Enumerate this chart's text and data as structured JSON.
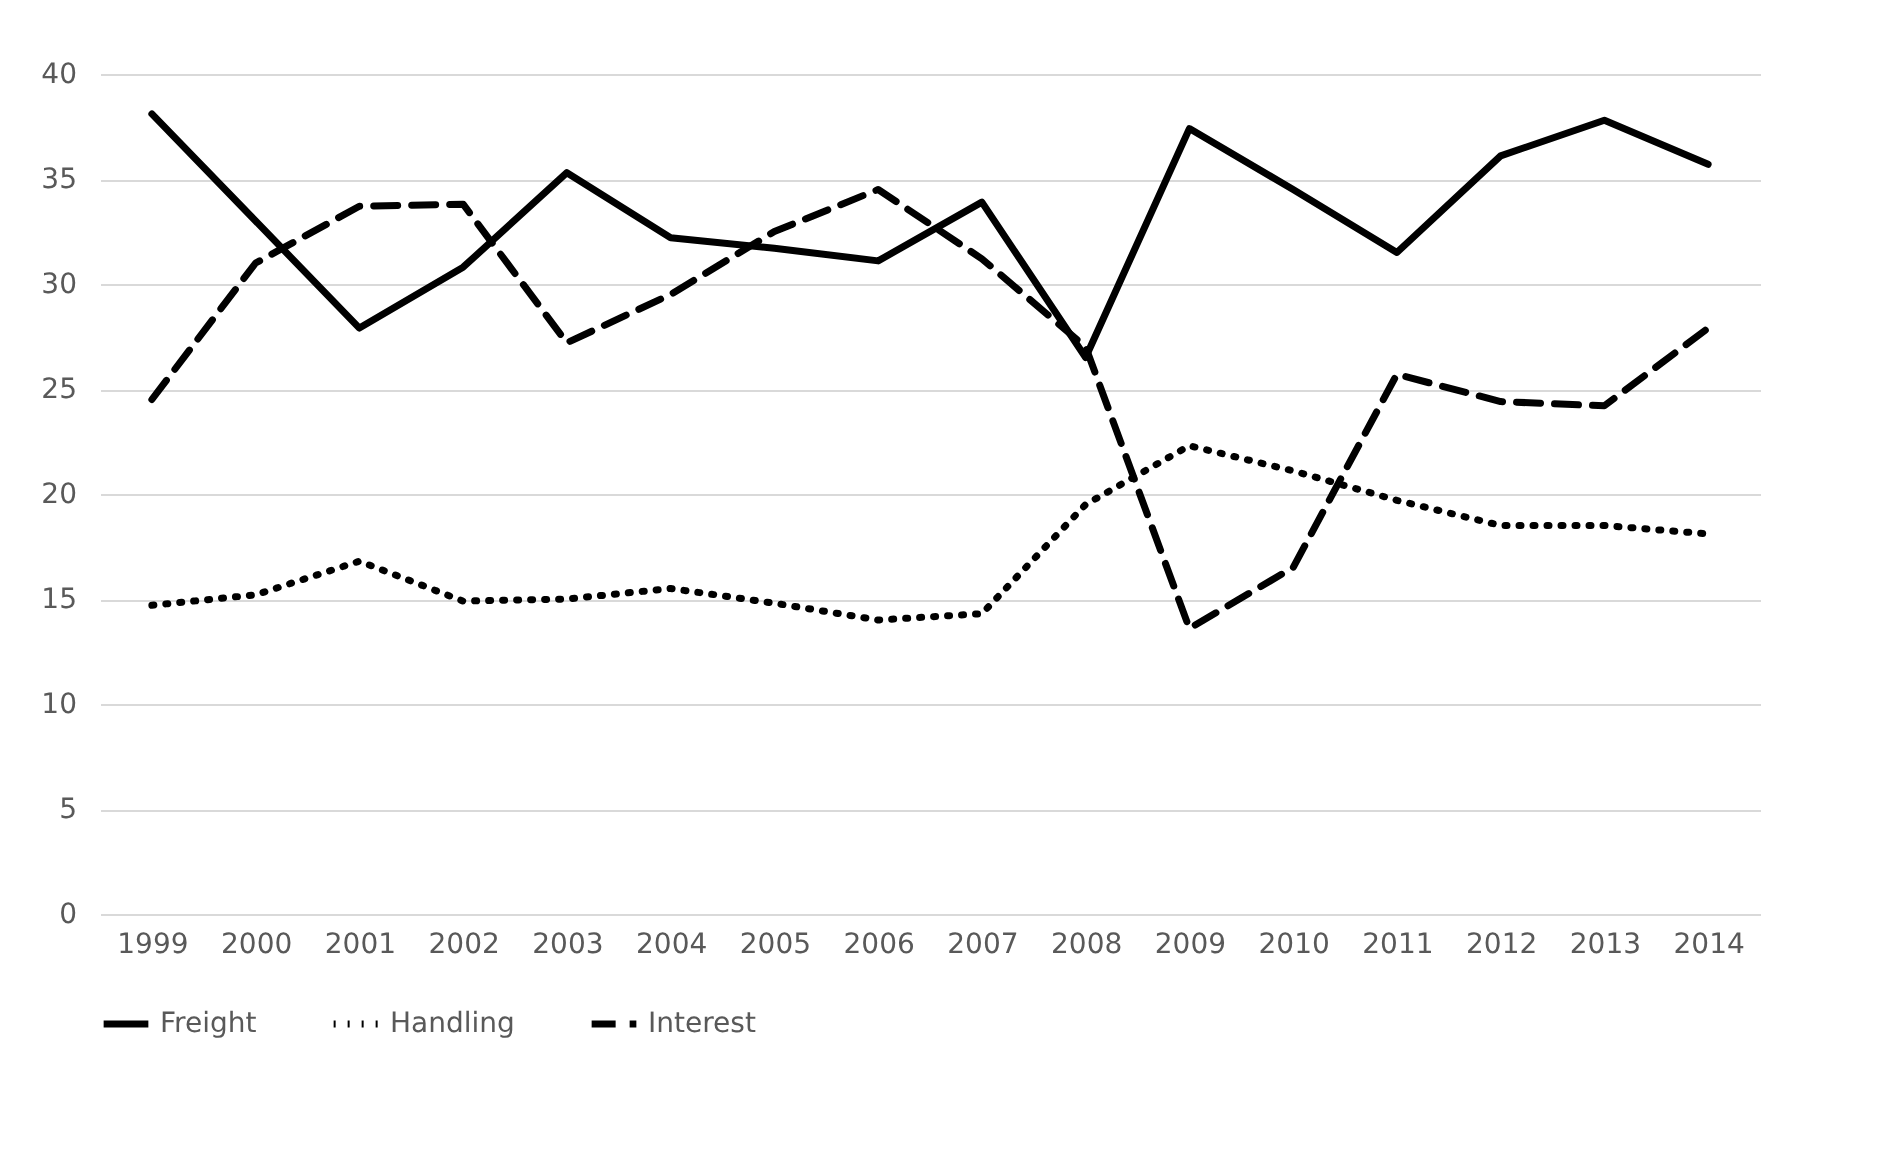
{
  "chart_data": {
    "type": "line",
    "categories": [
      "1999",
      "2000",
      "2001",
      "2002",
      "2003",
      "2004",
      "2005",
      "2006",
      "2007",
      "2008",
      "2009",
      "2010",
      "2011",
      "2012",
      "2013",
      "2014"
    ],
    "series": [
      {
        "name": "Freight",
        "color": "#000000",
        "line_style": "solid",
        "values": [
          38.1,
          33.0,
          27.9,
          30.8,
          35.3,
          32.2,
          31.7,
          31.1,
          33.9,
          26.5,
          37.4,
          34.5,
          31.5,
          36.1,
          37.8,
          35.7
        ]
      },
      {
        "name": "Handling",
        "color": "#000000",
        "line_style": "dotted",
        "values": [
          14.7,
          15.2,
          16.8,
          14.9,
          15.0,
          15.5,
          14.8,
          14.0,
          14.3,
          19.5,
          22.3,
          21.1,
          19.7,
          18.5,
          18.5,
          18.1
        ]
      },
      {
        "name": "Interest",
        "color": "#000000",
        "line_style": "dashed",
        "values": [
          24.5,
          31.0,
          33.7,
          33.8,
          27.2,
          29.5,
          32.5,
          34.5,
          31.2,
          27.0,
          13.6,
          16.5,
          25.7,
          24.4,
          24.2,
          27.9
        ]
      }
    ],
    "ylim": [
      0,
      40
    ],
    "yticks": [
      0,
      5,
      10,
      15,
      20,
      25,
      30,
      35,
      40
    ],
    "grid": "y",
    "legend": "bottom",
    "marker": "none"
  }
}
